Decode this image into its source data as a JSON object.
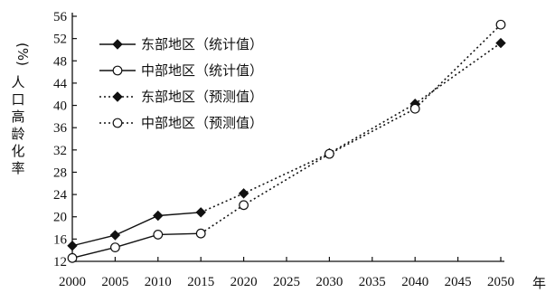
{
  "chart_data": {
    "type": "line",
    "xlabel": "年",
    "ylabel": "人口高龄化率",
    "yunit": "(%)",
    "xlim": [
      2000,
      2050
    ],
    "ylim": [
      12,
      56
    ],
    "xticks": [
      2000,
      2005,
      2010,
      2015,
      2020,
      2025,
      2030,
      2035,
      2040,
      2045,
      2050
    ],
    "yticks": [
      12,
      16,
      20,
      24,
      28,
      32,
      36,
      40,
      44,
      48,
      52,
      56
    ],
    "legend_position": "top-left",
    "grid": false,
    "series": [
      {
        "name": "东部地区（统计值）",
        "style": "solid",
        "marker": "filled-diamond",
        "x": [
          2000,
          2005,
          2010,
          2015
        ],
        "y": [
          14.8,
          16.7,
          20.2,
          20.8
        ]
      },
      {
        "name": "中部地区（统计值）",
        "style": "solid",
        "marker": "open-circle",
        "x": [
          2000,
          2005,
          2010,
          2015
        ],
        "y": [
          12.6,
          14.5,
          16.8,
          17.0
        ]
      },
      {
        "name": "东部地区（预测值）",
        "style": "dotted",
        "marker": "filled-diamond",
        "x": [
          2015,
          2020,
          2030,
          2040,
          2050
        ],
        "y": [
          20.8,
          24.2,
          31.4,
          40.3,
          51.2
        ]
      },
      {
        "name": "中部地区（预测值）",
        "style": "dotted",
        "marker": "open-circle",
        "x": [
          2015,
          2020,
          2030,
          2040,
          2050
        ],
        "y": [
          17.0,
          22.1,
          31.3,
          39.4,
          54.5
        ]
      }
    ]
  }
}
